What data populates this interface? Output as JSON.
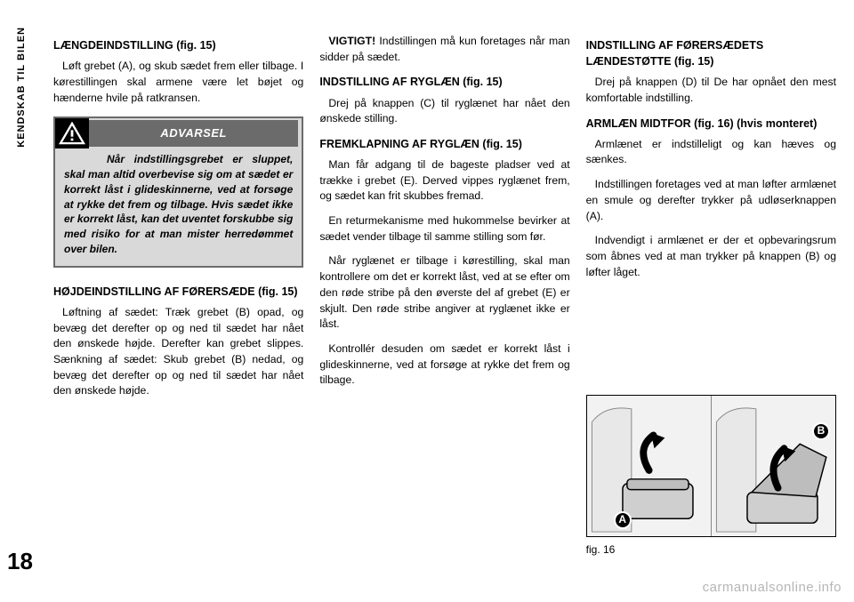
{
  "page": {
    "sidebar_tab": "KENDSKAB TIL BILEN",
    "number": "18",
    "watermark": "carmanualsonline.info"
  },
  "col1": {
    "h1": "LÆNGDEINDSTILLING (fig. 15)",
    "p1": "Løft grebet (A), og skub sædet frem eller tilbage. I kørestillingen skal armene være let bøjet og hænderne hvile på ratkransen.",
    "warning_title": "ADVARSEL",
    "warning_body": "Når indstillingsgrebet er sluppet, skal man altid overbevise sig om at sædet er korrekt låst i glideskinnerne, ved at forsøge at rykke det frem og tilbage. Hvis sædet ikke er korrekt låst, kan det uventet forskubbe sig med risiko for at man mister herredømmet over bilen.",
    "h2": "HØJDEINDSTILLING AF FØRERSÆDE (fig. 15)",
    "p2": "Løftning af sædet: Træk grebet (B) opad, og bevæg det derefter op og ned til sædet har nået den ønskede højde. Derefter kan grebet slippes. Sænkning af sædet: Skub grebet (B) nedad, og bevæg det derefter op og ned til sædet har nået den ønskede højde."
  },
  "col2": {
    "p1": "VIGTIGT! Indstillingen må kun foretages når man sidder på sædet.",
    "h1": "INDSTILLING AF RYGLÆN (fig. 15)",
    "p2": "Drej på knappen (C) til ryglænet har nået den ønskede stilling.",
    "h2": "FREMKLAPNING AF RYGLÆN (fig. 15)",
    "p3": "Man får adgang til de bageste pladser ved at trække i grebet (E). Derved vippes ryglænet frem, og sædet kan frit skubbes fremad.",
    "p4": "En returmekanisme med hukommelse bevirker at sædet vender tilbage til samme stilling som før.",
    "p5": "Når ryglænet er tilbage i kørestilling, skal man kontrollere om det er korrekt låst, ved at se efter om den røde stribe på den øverste del af grebet (E) er skjult. Den røde stribe angiver at ryglænet ikke er låst.",
    "p6": "Kontrollér desuden om sædet er korrekt låst i glideskinnerne, ved at forsøge at rykke det frem og tilbage."
  },
  "col3": {
    "h1": "INDSTILLING AF FØRERSÆDETS LÆNDESTØTTE (fig. 15)",
    "p1": "Drej på knappen (D) til De har opnået den mest komfortable indstilling.",
    "h2": "ARMLÆN MIDTFOR (fig. 16) (hvis monteret)",
    "p2": "Armlænet er indstilleligt og kan hæves og sænkes.",
    "p3": "Indstillingen foretages ved at man løfter armlænet en smule og derefter trykker på udløserknappen (A).",
    "p4": "Indvendigt i armlænet er der et opbevaringsrum som åbnes ved at man trykker på knappen (B) og løfter låget.",
    "fig_label_a": "A",
    "fig_label_b": "B",
    "fig_caption": "fig. 16"
  },
  "colors": {
    "warning_bg": "#d9d9d9",
    "warning_border": "#6b6b6b",
    "warning_title_bg": "#6b6b6b",
    "text": "#000000",
    "background": "#ffffff"
  }
}
